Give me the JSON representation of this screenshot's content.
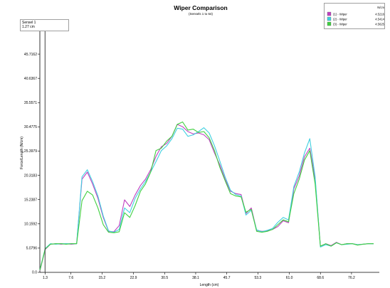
{
  "chart_data": {
    "type": "line",
    "title": "Wiper Comparison",
    "subtitle": "(Sensels 1 to 64)",
    "xlabel": "Length (cm)",
    "ylabel": "Force/Length (N/cm)",
    "xlim": [
      0,
      83
    ],
    "ylim": [
      0,
      50.7928
    ],
    "x_ticks": [
      1.3,
      7.6,
      15.2,
      22.9,
      30.5,
      38.1,
      45.7,
      53.3,
      61.0,
      68.6,
      76.2
    ],
    "x_tick_labels": [
      "1.3",
      "7.6",
      "15.2",
      "22.9",
      "30.5",
      "38.1",
      "45.7",
      "53.3",
      "61.0",
      "68.6",
      "76.2"
    ],
    "y_ticks": [
      0,
      5.0796,
      10.1592,
      15.2387,
      20.3183,
      25.3979,
      30.4775,
      35.5571,
      40.6367,
      45.7162,
      50.7928
    ],
    "y_tick_labels": [
      "0.0",
      "5.0796",
      "10.1592",
      "15.2387",
      "20.3183",
      "25.3979",
      "30.4775",
      "35.5571",
      "40.6367",
      "45.7162",
      "50.7928"
    ],
    "cursor": {
      "label": "Sensel 1",
      "value": "1.27 cm",
      "x": 1.27
    },
    "legend_header": "N/cm",
    "series": [
      {
        "name": "(1) - Wiper",
        "legend_value": "4.5216",
        "color": "#c040c0",
        "x": [
          0.0,
          1.3,
          2.6,
          3.9,
          5.2,
          6.4,
          7.7,
          9.0,
          10.3,
          11.6,
          12.9,
          14.2,
          15.5,
          16.8,
          18.1,
          19.4,
          20.7,
          22.0,
          23.3,
          24.6,
          25.8,
          27.1,
          28.4,
          29.7,
          31.0,
          32.3,
          33.6,
          34.9,
          36.2,
          37.5,
          38.8,
          40.1,
          41.4,
          42.7,
          44.0,
          45.3,
          46.6,
          47.9,
          49.2,
          50.4,
          51.7,
          53.0,
          54.3,
          55.6,
          56.9,
          58.2,
          59.5,
          60.8,
          62.1,
          63.4,
          64.7,
          66.0,
          67.3,
          68.6,
          69.9,
          71.2,
          72.5,
          73.8,
          75.1,
          76.4,
          77.7,
          79.0,
          80.3,
          81.6
        ],
        "values": [
          0.3,
          4.8,
          5.9,
          6.0,
          5.9,
          6.0,
          5.9,
          6.0,
          19.5,
          21.0,
          18.5,
          15.5,
          11.5,
          8.6,
          8.5,
          9.8,
          15.2,
          13.8,
          16.2,
          18.2,
          19.5,
          21.5,
          24.3,
          26.3,
          27.0,
          28.5,
          31.0,
          30.5,
          29.5,
          29.0,
          29.2,
          28.8,
          27.8,
          25.0,
          22.5,
          19.5,
          17.0,
          16.5,
          16.3,
          12.3,
          13.5,
          8.8,
          8.6,
          8.7,
          9.0,
          9.6,
          10.8,
          10.4,
          17.5,
          20.2,
          24.2,
          26.0,
          19.5,
          5.5,
          6.0,
          5.6,
          6.3,
          5.8,
          6.0,
          6.0,
          5.8,
          5.9,
          6.0,
          6.0
        ]
      },
      {
        "name": "(2) - Wiper",
        "legend_value": "4.5414",
        "color": "#40d0e0",
        "x": [
          0.0,
          1.3,
          2.6,
          3.9,
          5.2,
          6.4,
          7.7,
          9.0,
          10.3,
          11.6,
          12.9,
          14.2,
          15.5,
          16.8,
          18.1,
          19.4,
          20.7,
          22.0,
          23.3,
          24.6,
          25.8,
          27.1,
          28.4,
          29.7,
          31.0,
          32.3,
          33.6,
          34.9,
          36.2,
          37.5,
          38.8,
          40.1,
          41.4,
          42.7,
          44.0,
          45.3,
          46.6,
          47.9,
          49.2,
          50.4,
          51.7,
          53.0,
          54.3,
          55.6,
          56.9,
          58.2,
          59.5,
          60.8,
          62.1,
          63.4,
          64.7,
          66.0,
          67.3,
          68.6,
          69.9,
          71.2,
          72.5,
          73.8,
          75.1,
          76.4,
          77.7,
          79.0,
          80.3,
          81.6
        ],
        "values": [
          0.5,
          5.0,
          6.0,
          5.9,
          6.0,
          6.0,
          6.0,
          6.0,
          20.0,
          21.5,
          19.0,
          16.0,
          11.8,
          8.7,
          8.4,
          9.0,
          13.5,
          12.5,
          15.5,
          17.5,
          19.0,
          21.0,
          23.2,
          25.5,
          26.5,
          28.0,
          30.2,
          30.0,
          28.5,
          28.8,
          29.5,
          30.3,
          29.2,
          26.5,
          23.3,
          20.0,
          17.2,
          16.3,
          16.0,
          12.0,
          13.0,
          8.9,
          8.5,
          8.8,
          9.2,
          10.5,
          11.5,
          11.0,
          18.0,
          21.0,
          25.0,
          28.0,
          20.0,
          5.3,
          5.8,
          5.5,
          6.2,
          5.8,
          5.9,
          6.0,
          5.8,
          5.9,
          6.0,
          6.0
        ]
      },
      {
        "name": "(3) - Wiper",
        "legend_value": "4.5625",
        "color": "#40d040",
        "x": [
          0.0,
          1.3,
          2.6,
          3.9,
          5.2,
          6.4,
          7.7,
          9.0,
          10.3,
          11.6,
          12.9,
          14.2,
          15.5,
          16.8,
          18.1,
          19.4,
          20.7,
          22.0,
          23.3,
          24.6,
          25.8,
          27.1,
          28.4,
          29.7,
          31.0,
          32.3,
          33.6,
          34.9,
          36.2,
          37.5,
          38.8,
          40.1,
          41.4,
          42.7,
          44.0,
          45.3,
          46.6,
          47.9,
          49.2,
          50.4,
          51.7,
          53.0,
          54.3,
          55.6,
          56.9,
          58.2,
          59.5,
          60.8,
          62.1,
          63.4,
          64.7,
          66.0,
          67.3,
          68.6,
          69.9,
          71.2,
          72.5,
          73.8,
          75.1,
          76.4,
          77.7,
          79.0,
          80.3,
          81.6
        ],
        "values": [
          0.4,
          4.9,
          5.9,
          6.0,
          6.0,
          5.9,
          6.0,
          6.0,
          15.0,
          17.0,
          16.2,
          13.5,
          10.0,
          8.4,
          8.3,
          8.5,
          12.5,
          11.5,
          14.0,
          17.0,
          18.5,
          21.0,
          25.5,
          26.0,
          27.5,
          28.5,
          31.0,
          31.5,
          29.8,
          30.0,
          29.3,
          29.5,
          28.2,
          25.5,
          22.0,
          19.2,
          16.5,
          16.0,
          15.8,
          12.6,
          13.2,
          8.6,
          8.4,
          8.6,
          9.0,
          10.0,
          11.0,
          10.6,
          16.5,
          19.5,
          23.5,
          25.5,
          18.5,
          5.5,
          6.0,
          5.5,
          6.2,
          5.8,
          6.0,
          6.0,
          5.7,
          5.9,
          6.0,
          6.0
        ]
      }
    ]
  }
}
